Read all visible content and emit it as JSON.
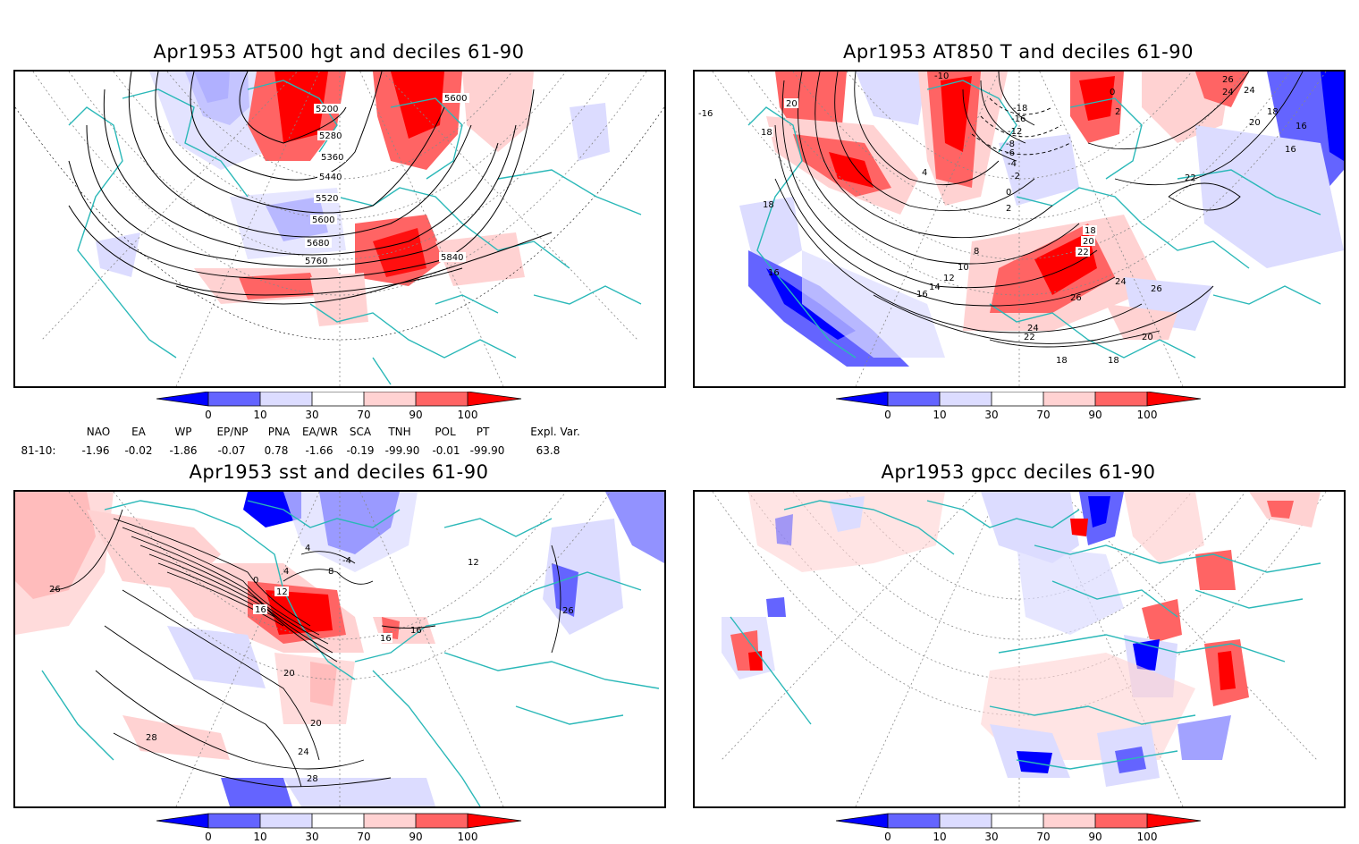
{
  "panels": [
    {
      "title": "Apr1953 AT500 hgt and deciles 61-90",
      "contour_labels": [
        "5200",
        "5280",
        "5360",
        "5440",
        "5520",
        "5600",
        "5680",
        "5760",
        "5840",
        "5600"
      ]
    },
    {
      "title": "Apr1953 AT850 T and deciles 61-90",
      "contour_labels": [
        "-10",
        "20",
        "18",
        "-16",
        "18",
        "16",
        "4",
        "-18",
        "-16",
        "-12",
        "-8",
        "-6",
        "-4",
        "-2",
        "0",
        "2",
        "24",
        "20",
        "18",
        "22",
        "16",
        "8",
        "10",
        "12",
        "14",
        "16",
        "18",
        "20",
        "22",
        "24",
        "26",
        "24",
        "26",
        "22",
        "20",
        "18",
        "18",
        "0",
        "2",
        "26",
        "24",
        "16"
      ]
    },
    {
      "title": "Apr1953 sst and deciles 61-90",
      "contour_labels": [
        "26",
        "0",
        "4",
        "8",
        "12",
        "16",
        "-4",
        "4",
        "16",
        "20",
        "20",
        "24",
        "28",
        "28",
        "26",
        "12",
        "16"
      ]
    },
    {
      "title": "Apr1953 gpcc deciles 61-90",
      "contour_labels": []
    }
  ],
  "colorbar": {
    "ticks": [
      "0",
      "10",
      "30",
      "70",
      "90",
      "100"
    ],
    "colors": [
      "#0000ff",
      "#6464ff",
      "#dcdcff",
      "#ffffff",
      "#ffd2d2",
      "#ff6464",
      "#ff0000"
    ]
  },
  "indices": {
    "headers": [
      "NAO",
      "EA",
      "WP",
      "EP/NP",
      "PNA",
      "EA/WR",
      "SCA",
      "TNH",
      "POL",
      "PT",
      "Expl. Var."
    ],
    "row_label": "81-10:",
    "values": [
      "-1.96",
      "-0.02",
      "-1.86",
      "-0.07",
      "0.78",
      "-1.66",
      "-0.19",
      "-99.90",
      "-0.01",
      "-99.90",
      "63.8"
    ]
  }
}
